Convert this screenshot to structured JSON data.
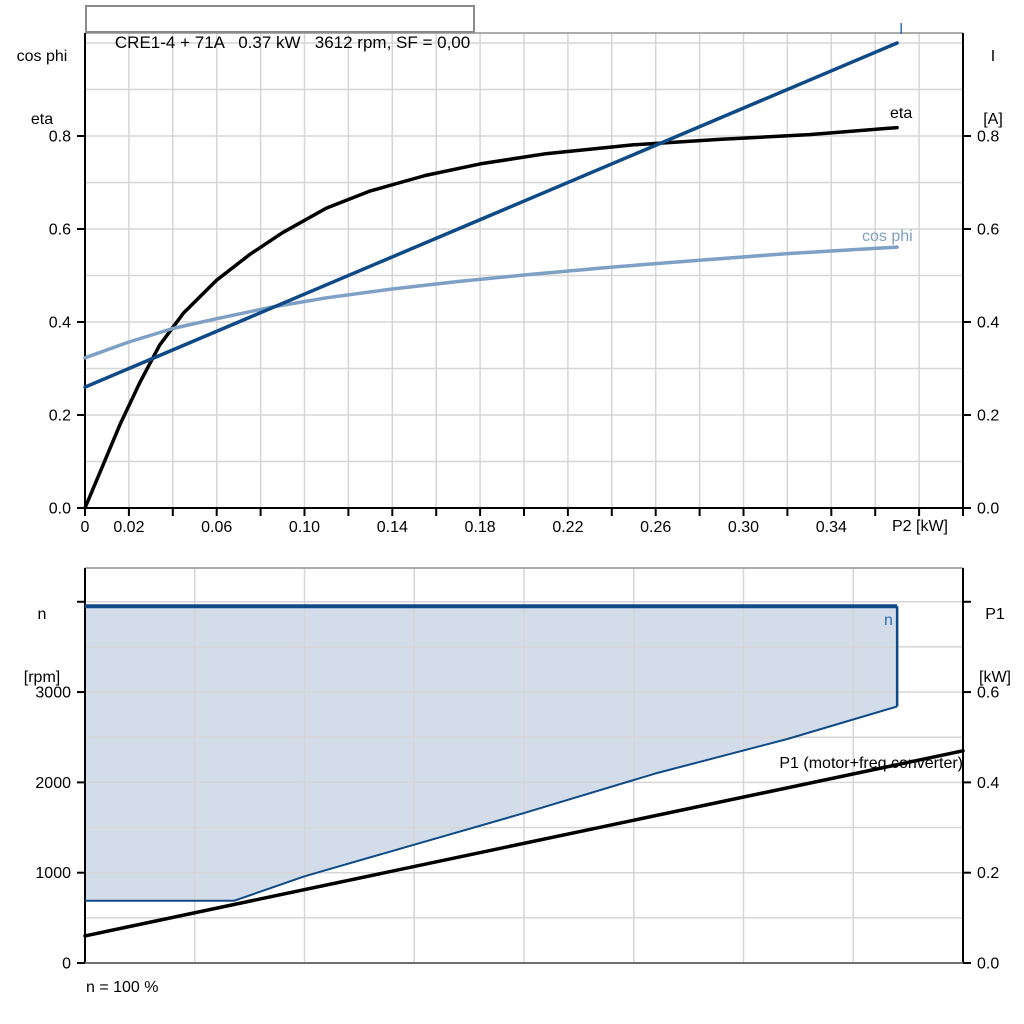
{
  "footer_note": "n = 100 %",
  "colors": {
    "grid": "#d6d6d6",
    "frame_gray": "#919191",
    "axis": "#000000",
    "bottom_axis_gray": "#707070",
    "curve_blue": "#0e4a86",
    "label_blue": "#2f6db6",
    "cos_phi_blue": "#7da0c4",
    "fill_blue": "#d2dde9",
    "black": "#000000"
  },
  "chart_data": [
    {
      "id": "top",
      "type": "line",
      "title": "CRE1-4 + 71A   0.37 kW   3612 rpm, SF = 0,00",
      "x_axis": {
        "label": "P2 [kW]",
        "min": 0,
        "max": 0.4,
        "grid_step": 0.02,
        "tick_step": 0.02,
        "show_ticks": true,
        "ticks": [
          {
            "v": 0,
            "t": "0"
          },
          {
            "v": 0.02,
            "t": "0.02"
          },
          {
            "v": 0.06,
            "t": "0.06"
          },
          {
            "v": 0.1,
            "t": "0.10"
          },
          {
            "v": 0.14,
            "t": "0.14"
          },
          {
            "v": 0.18,
            "t": "0.18"
          },
          {
            "v": 0.22,
            "t": "0.22"
          },
          {
            "v": 0.26,
            "t": "0.26"
          },
          {
            "v": 0.3,
            "t": "0.30"
          },
          {
            "v": 0.34,
            "t": "0.34"
          }
        ]
      },
      "y_left": {
        "label_lines": [
          "cos phi",
          "eta"
        ],
        "min": 0,
        "max": 1.0215,
        "grid_step": 0.1,
        "tick_step": 0.2,
        "tick_max": 0.8,
        "ticks": [
          {
            "v": 0,
            "t": "0.0"
          },
          {
            "v": 0.2,
            "t": "0.2"
          },
          {
            "v": 0.4,
            "t": "0.4"
          },
          {
            "v": 0.6,
            "t": "0.6"
          },
          {
            "v": 0.8,
            "t": "0.8"
          }
        ]
      },
      "y_right": {
        "label_lines": [
          "I",
          "[A]"
        ],
        "min": 0,
        "max": 1.0215,
        "tick_step": 0.2,
        "tick_max": 0.8,
        "ticks": [
          {
            "v": 0,
            "t": "0.0"
          },
          {
            "v": 0.2,
            "t": "0.2"
          },
          {
            "v": 0.4,
            "t": "0.4"
          },
          {
            "v": 0.6,
            "t": "0.6"
          },
          {
            "v": 0.8,
            "t": "0.8"
          }
        ]
      },
      "bottom_axis": "black",
      "series": [
        {
          "name": "eta",
          "axis": "left",
          "color": "#000000",
          "width": 3.5,
          "points": [
            [
              0,
              0
            ],
            [
              0.008,
              0.09
            ],
            [
              0.016,
              0.18
            ],
            [
              0.025,
              0.27
            ],
            [
              0.034,
              0.35
            ],
            [
              0.045,
              0.42
            ],
            [
              0.06,
              0.49
            ],
            [
              0.075,
              0.545
            ],
            [
              0.09,
              0.592
            ],
            [
              0.11,
              0.645
            ],
            [
              0.13,
              0.682
            ],
            [
              0.155,
              0.715
            ],
            [
              0.18,
              0.74
            ],
            [
              0.21,
              0.762
            ],
            [
              0.25,
              0.781
            ],
            [
              0.29,
              0.793
            ],
            [
              0.33,
              0.803
            ],
            [
              0.37,
              0.818
            ]
          ]
        },
        {
          "name": "cos phi",
          "axis": "left",
          "color": "#7da0c4",
          "width": 3.5,
          "points": [
            [
              0,
              0.323
            ],
            [
              0.02,
              0.357
            ],
            [
              0.04,
              0.386
            ],
            [
              0.06,
              0.407
            ],
            [
              0.085,
              0.432
            ],
            [
              0.11,
              0.452
            ],
            [
              0.14,
              0.471
            ],
            [
              0.17,
              0.487
            ],
            [
              0.2,
              0.501
            ],
            [
              0.24,
              0.518
            ],
            [
              0.28,
              0.533
            ],
            [
              0.32,
              0.547
            ],
            [
              0.37,
              0.561
            ]
          ]
        },
        {
          "name": "I",
          "axis": "right",
          "color": "#0e4a86",
          "label_color": "#2f6db6",
          "width": 3.5,
          "points": [
            [
              0,
              0.26
            ],
            [
              0.37,
              1.0
            ]
          ]
        }
      ]
    },
    {
      "id": "bottom",
      "type": "line",
      "x_axis": {
        "label": "",
        "min": 0,
        "max": 0.4,
        "grid_step": 0.05,
        "tick_step": 0.05,
        "show_ticks": false,
        "ticks": []
      },
      "y_left": {
        "label_lines": [
          "n",
          "[rpm]"
        ],
        "min": 0,
        "max": 4374,
        "grid_step": 500,
        "tick_step": 1000,
        "tick_max": 4000,
        "ticks": [
          {
            "v": 0,
            "t": "0"
          },
          {
            "v": 1000,
            "t": "1000"
          },
          {
            "v": 2000,
            "t": "2000"
          },
          {
            "v": 3000,
            "t": "3000"
          }
        ]
      },
      "y_right": {
        "label_lines": [
          "P1",
          "[kW]"
        ],
        "min": 0,
        "max": 0.8748,
        "tick_step": 0.2,
        "tick_max": 0.8,
        "ticks": [
          {
            "v": 0,
            "t": "0.0"
          },
          {
            "v": 0.2,
            "t": "0.2"
          },
          {
            "v": 0.4,
            "t": "0.4"
          },
          {
            "v": 0.6,
            "t": "0.6"
          }
        ]
      },
      "bottom_axis": "gray",
      "series": [
        {
          "name": "n",
          "type": "envelope",
          "axis": "left",
          "color": "#0e4a86",
          "label_color": "#2f6db6",
          "fill": "#d2dde9",
          "top_n": 3950,
          "x_end": 0.37,
          "right_bottom_n": 2840,
          "lower_boundary": [
            [
              0,
              690
            ],
            [
              0.068,
              690
            ],
            [
              0.1,
              960
            ],
            [
              0.15,
              1310
            ],
            [
              0.2,
              1660
            ],
            [
              0.26,
              2100
            ],
            [
              0.32,
              2480
            ],
            [
              0.37,
              2840
            ]
          ]
        },
        {
          "name": "P1 (motor+freq.converter)",
          "axis": "right",
          "color": "#000000",
          "width": 3.5,
          "points": [
            [
              0,
              0.06
            ],
            [
              0.4,
              0.47
            ]
          ]
        }
      ]
    }
  ]
}
